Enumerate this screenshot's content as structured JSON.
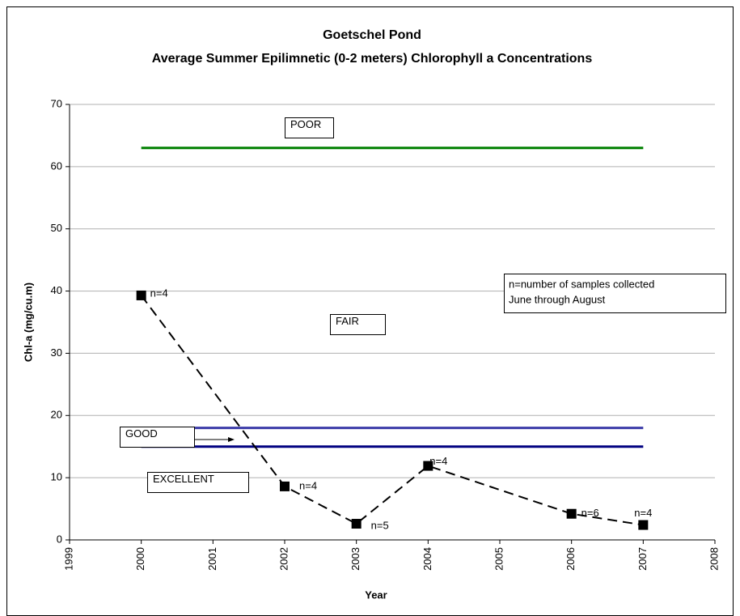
{
  "chart_data": {
    "type": "line",
    "title": [
      "Goetschel Pond",
      "Average Summer Epilimnetic (0-2 meters) Chlorophyll a Concentrations"
    ],
    "x_label": "Year",
    "y_label": "Chl-a (mg/cu.m)",
    "x": [
      2000,
      2002,
      2003,
      2004,
      2006,
      2007
    ],
    "series": [
      {
        "color": "#000000",
        "values": [
          39.3,
          8.6,
          2.6,
          11.9,
          4.2,
          2.4
        ],
        "dashed": true,
        "marker": "square"
      }
    ],
    "point_labels": [
      "n=4",
      "n=4",
      "n=5",
      "n=4",
      "n=6",
      "n=4"
    ],
    "reference_lines": [
      {
        "value": 63,
        "color": "#008000"
      },
      {
        "value": 18,
        "color": "#3b3ba8"
      },
      {
        "value": 15,
        "color": "#000080"
      }
    ],
    "reference_span": [
      2000,
      2007
    ],
    "annotations": [
      "POOR",
      "FAIR",
      "GOOD",
      "EXCELLENT"
    ],
    "note": [
      "n=number of samples collected",
      "June through August"
    ],
    "xlim": [
      1999,
      2008
    ],
    "xticks": [
      1999,
      2000,
      2001,
      2002,
      2003,
      2004,
      2005,
      2006,
      2007,
      2008
    ],
    "ylim": [
      0,
      70
    ],
    "yticks": [
      0,
      10,
      20,
      30,
      40,
      50,
      60,
      70
    ],
    "grid": true
  }
}
